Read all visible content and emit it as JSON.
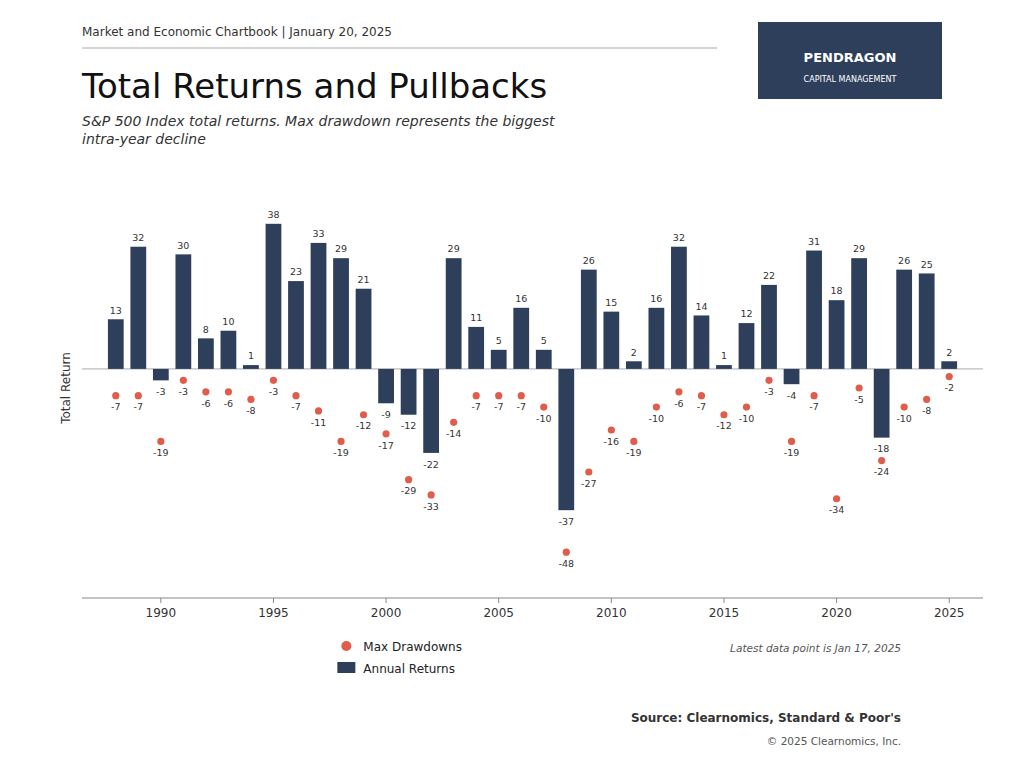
{
  "chart_data": {
    "type": "bar",
    "title": "Total Returns and Pullbacks",
    "subtitle": "S&P 500 Index total returns. Max drawdown represents the biggest\nintra-year decline",
    "ylabel": "Total Return",
    "annotations": [
      "Market and Economic Chartbook | January 20, 2025",
      "PENDRAGON",
      "CAPITAL MANAGEMENT",
      "Latest data point is Jan 17, 2025",
      "Source: Clearnomics, Standard & Poor's",
      "© 2025 Clearnomics, Inc."
    ],
    "x": [
      1988,
      1989,
      1990,
      1991,
      1992,
      1993,
      1994,
      1995,
      1996,
      1997,
      1998,
      1999,
      2000,
      2001,
      2002,
      2003,
      2004,
      2005,
      2006,
      2007,
      2008,
      2009,
      2010,
      2011,
      2012,
      2013,
      2014,
      2015,
      2016,
      2017,
      2018,
      2019,
      2020,
      2021,
      2022,
      2023,
      2024,
      2025
    ],
    "series": [
      {
        "name": "Annual Returns",
        "type": "bar",
        "color": "#2e3f5c",
        "values": [
          13,
          32,
          -3,
          30,
          8,
          10,
          1,
          38,
          23,
          33,
          29,
          21,
          -9,
          -12,
          -22,
          29,
          11,
          5,
          16,
          5,
          -37,
          26,
          15,
          2,
          16,
          32,
          14,
          1,
          12,
          22,
          -4,
          31,
          18,
          29,
          -18,
          26,
          25,
          2
        ]
      },
      {
        "name": "Max Drawdowns",
        "type": "scatter",
        "color": "#e05c4b",
        "marker": "circle",
        "values": [
          -7,
          -7,
          -19,
          -3,
          -6,
          -6,
          -8,
          -3,
          -7,
          -11,
          -19,
          -12,
          -17,
          -29,
          -33,
          -14,
          -7,
          -7,
          -7,
          -10,
          -48,
          -27,
          -16,
          -19,
          -10,
          -6,
          -7,
          -12,
          -10,
          -3,
          -19,
          -7,
          -34,
          -5,
          -24,
          -10,
          -8,
          -2
        ]
      }
    ],
    "xlim": [
      1986.5,
      2026.5
    ],
    "xticks": [
      1990,
      1995,
      2000,
      2005,
      2010,
      2015,
      2020,
      2025
    ],
    "ylim": [
      -60,
      50
    ],
    "tick_labels": "x",
    "data_labels": true,
    "grid": false,
    "legend": "bottom"
  }
}
